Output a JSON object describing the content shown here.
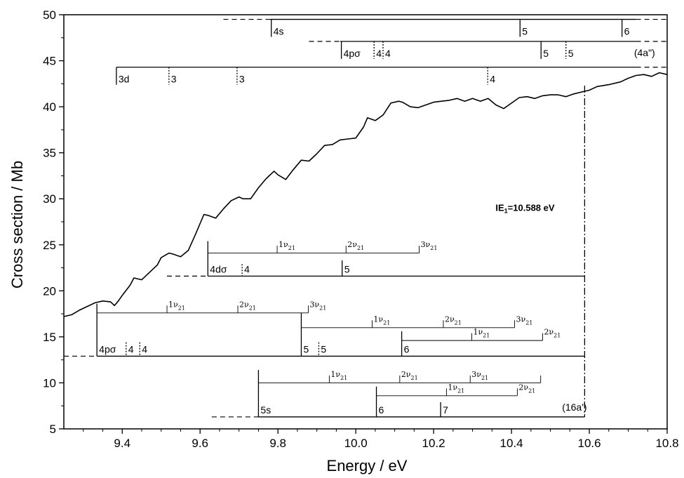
{
  "chart_data": {
    "type": "line",
    "xlabel": "Energy / eV",
    "ylabel": "Cross section / Mb",
    "xlim": [
      9.25,
      10.8
    ],
    "ylim": [
      5,
      50
    ],
    "xticks": [
      9.4,
      9.6,
      9.8,
      10.0,
      10.2,
      10.4,
      10.6,
      10.8
    ],
    "xtick_labels": [
      "9.4",
      "9.6",
      "9.8",
      "10.0",
      "10.2",
      "10.4",
      "10.6",
      "10.8"
    ],
    "yticks": [
      5,
      10,
      15,
      20,
      25,
      30,
      35,
      40,
      45,
      50
    ],
    "ytick_labels": [
      "5",
      "10",
      "15",
      "20",
      "25",
      "30",
      "35",
      "40",
      "45",
      "50"
    ],
    "grid": false,
    "series": [
      {
        "x": [
          9.25,
          9.27,
          9.29,
          9.31,
          9.33,
          9.35,
          9.37,
          9.38,
          9.39,
          9.4,
          9.42,
          9.43,
          9.45,
          9.47,
          9.49,
          9.5,
          9.52,
          9.53,
          9.55,
          9.57,
          9.59,
          9.61,
          9.62,
          9.64,
          9.66,
          9.68,
          9.7,
          9.71,
          9.73,
          9.75,
          9.77,
          9.79,
          9.8,
          9.82,
          9.84,
          9.86,
          9.88,
          9.9,
          9.92,
          9.94,
          9.96,
          9.98,
          10.0,
          10.02,
          10.03,
          10.05,
          10.07,
          10.09,
          10.11,
          10.12,
          10.14,
          10.16,
          10.18,
          10.2,
          10.22,
          10.24,
          10.26,
          10.28,
          10.3,
          10.32,
          10.34,
          10.36,
          10.38,
          10.4,
          10.42,
          10.44,
          10.46,
          10.48,
          10.5,
          10.52,
          10.54,
          10.56,
          10.58,
          10.6,
          10.62,
          10.65,
          10.68,
          10.7,
          10.72,
          10.74,
          10.76,
          10.78,
          10.8
        ],
        "y": [
          17.2,
          17.4,
          17.9,
          18.3,
          18.7,
          18.9,
          18.8,
          18.4,
          18.9,
          19.5,
          20.6,
          21.4,
          21.2,
          22.0,
          22.8,
          23.6,
          24.1,
          24.0,
          23.7,
          24.4,
          26.3,
          28.3,
          28.2,
          27.9,
          28.9,
          29.8,
          30.2,
          30.0,
          30.0,
          31.2,
          32.2,
          33.0,
          32.6,
          32.1,
          33.2,
          34.2,
          34.1,
          34.9,
          35.8,
          35.9,
          36.4,
          36.5,
          36.6,
          37.8,
          38.8,
          38.5,
          39.1,
          40.4,
          40.6,
          40.5,
          40.0,
          39.9,
          40.2,
          40.5,
          40.6,
          40.7,
          40.9,
          40.6,
          40.9,
          40.6,
          40.9,
          40.2,
          39.8,
          40.4,
          41.0,
          41.1,
          40.9,
          41.2,
          41.3,
          41.3,
          41.1,
          41.4,
          41.6,
          41.8,
          42.2,
          42.4,
          42.7,
          43.1,
          43.4,
          43.5,
          43.3,
          43.7,
          43.5
        ]
      }
    ],
    "ie_line": {
      "x": 10.588,
      "label_main": "IE",
      "label_sub": "1",
      "label_rest": "=10.588 eV"
    },
    "progressions": [
      {
        "baseline_y": 49.5,
        "x_start": 9.66,
        "x_end": 10.8,
        "dash_start_end": 9.78,
        "dash_end_start": 10.72,
        "marks": [
          {
            "x": 9.783,
            "top": 49.5,
            "bottom": 47.6,
            "style": "solid",
            "label": "4s"
          },
          {
            "x": 10.422,
            "top": 49.5,
            "bottom": 47.6,
            "style": "solid",
            "label": "5"
          },
          {
            "x": 10.684,
            "top": 49.5,
            "bottom": 47.6,
            "style": "solid",
            "label": "6"
          }
        ]
      },
      {
        "baseline_y": 47.1,
        "x_start": 9.88,
        "x_end": 10.8,
        "dash_start_end": 9.96,
        "dash_end_start": 10.72,
        "marks": [
          {
            "x": 9.963,
            "top": 47.1,
            "bottom": 45.2,
            "style": "solid",
            "label": "4pσ"
          },
          {
            "x": 10.047,
            "top": 47.1,
            "bottom": 45.2,
            "style": "dotted",
            "label": "4"
          },
          {
            "x": 10.07,
            "top": 47.1,
            "bottom": 45.2,
            "style": "dotted",
            "label": "4"
          },
          {
            "x": 10.476,
            "top": 47.1,
            "bottom": 45.2,
            "style": "solid",
            "label": "5"
          },
          {
            "x": 10.54,
            "top": 47.1,
            "bottom": 45.2,
            "style": "dotted",
            "label": "5"
          }
        ]
      },
      {
        "baseline_y": 44.3,
        "x_start": 9.385,
        "x_end": 10.8,
        "dash_end_start": 10.72,
        "marks": [
          {
            "x": 9.385,
            "top": 44.3,
            "bottom": 42.4,
            "style": "solid",
            "label": "3d"
          },
          {
            "x": 9.52,
            "top": 44.3,
            "bottom": 42.4,
            "style": "dotted",
            "label": "3"
          },
          {
            "x": 9.695,
            "top": 44.3,
            "bottom": 42.4,
            "style": "dotted",
            "label": "3"
          },
          {
            "x": 10.339,
            "top": 44.3,
            "bottom": 42.4,
            "style": "dotted",
            "label": "4"
          }
        ]
      },
      {
        "baseline_y": 21.6,
        "x_start": 9.515,
        "x_end": 10.588,
        "dash_start_end": 9.62,
        "marks": [
          {
            "x": 9.62,
            "top": 25.4,
            "bottom": 21.6,
            "style": "solid",
            "label": "4dσ"
          },
          {
            "x": 9.708,
            "top": 22.9,
            "bottom": 21.6,
            "style": "dotted",
            "label": "4"
          },
          {
            "x": 9.965,
            "top": 23.3,
            "bottom": 21.6,
            "style": "solid",
            "label": "5"
          }
        ]
      },
      {
        "baseline_y": 12.9,
        "x_start": 9.25,
        "x_end": 10.588,
        "dash_start_end": 9.335,
        "marks": [
          {
            "x": 9.335,
            "top": 18.6,
            "bottom": 12.9,
            "style": "solid",
            "label": "4pσ"
          },
          {
            "x": 9.41,
            "top": 14.4,
            "bottom": 12.9,
            "style": "dotted",
            "label": "4"
          },
          {
            "x": 9.445,
            "top": 14.4,
            "bottom": 12.9,
            "style": "dotted",
            "label": "4"
          },
          {
            "x": 9.86,
            "top": 17.6,
            "bottom": 12.9,
            "style": "solid",
            "label": "5"
          },
          {
            "x": 9.905,
            "top": 14.4,
            "bottom": 12.9,
            "style": "dotted",
            "label": "5"
          },
          {
            "x": 10.118,
            "top": 15.6,
            "bottom": 12.9,
            "style": "solid",
            "label": "6"
          }
        ]
      },
      {
        "baseline_y": 6.3,
        "x_start": 9.63,
        "x_end": 10.588,
        "dash_start_end": 9.75,
        "marks": [
          {
            "x": 9.75,
            "top": 11.4,
            "bottom": 6.3,
            "style": "solid",
            "label": "5s"
          },
          {
            "x": 10.053,
            "top": 9.6,
            "bottom": 6.3,
            "style": "solid",
            "label": "6"
          },
          {
            "x": 10.218,
            "top": 7.9,
            "bottom": 6.3,
            "style": "solid",
            "label": "7"
          }
        ]
      }
    ],
    "vibrational_ladders": [
      {
        "y": 24.1,
        "x_start": 9.62,
        "tick_top": 24.9,
        "marks": [
          {
            "x": 9.798,
            "label": "1ν",
            "sub": "21"
          },
          {
            "x": 9.975,
            "label": "2ν",
            "sub": "21"
          },
          {
            "x": 10.163,
            "label": "3ν",
            "sub": "21"
          }
        ]
      },
      {
        "y": 17.6,
        "x_start": 9.335,
        "tick_top": 18.4,
        "marks": [
          {
            "x": 9.515,
            "label": "1ν",
            "sub": "21"
          },
          {
            "x": 9.697,
            "label": "2ν",
            "sub": "21"
          },
          {
            "x": 9.878,
            "label": "3ν",
            "sub": "21"
          }
        ]
      },
      {
        "y": 16.0,
        "x_start": 9.86,
        "tick_top": 16.8,
        "marks": [
          {
            "x": 10.042,
            "label": "1ν",
            "sub": "21"
          },
          {
            "x": 10.225,
            "label": "2ν",
            "sub": "21"
          },
          {
            "x": 10.408,
            "label": "3ν",
            "sub": "21"
          }
        ]
      },
      {
        "y": 14.6,
        "x_start": 10.118,
        "tick_top": 15.4,
        "marks": [
          {
            "x": 10.298,
            "label": "1ν",
            "sub": "21"
          },
          {
            "x": 10.48,
            "label": "2ν",
            "sub": "21"
          }
        ]
      },
      {
        "y": 10.0,
        "x_start": 9.75,
        "tick_top": 10.8,
        "marks": [
          {
            "x": 9.932,
            "label": "1ν",
            "sub": "21"
          },
          {
            "x": 10.113,
            "label": "2ν",
            "sub": "21"
          },
          {
            "x": 10.294,
            "label": "3ν",
            "sub": "21"
          },
          {
            "x": 10.475,
            "label": "",
            "sub": ""
          }
        ]
      },
      {
        "y": 8.6,
        "x_start": 10.053,
        "tick_top": 9.4,
        "marks": [
          {
            "x": 10.233,
            "label": "1ν",
            "sub": "21"
          },
          {
            "x": 10.415,
            "label": "2ν",
            "sub": "21"
          }
        ]
      }
    ],
    "symmetry_labels": [
      {
        "text": "(4a\")",
        "x": 10.715,
        "y": 45.5
      },
      {
        "text": "(16a')",
        "x": 10.53,
        "y": 7.0
      }
    ]
  }
}
